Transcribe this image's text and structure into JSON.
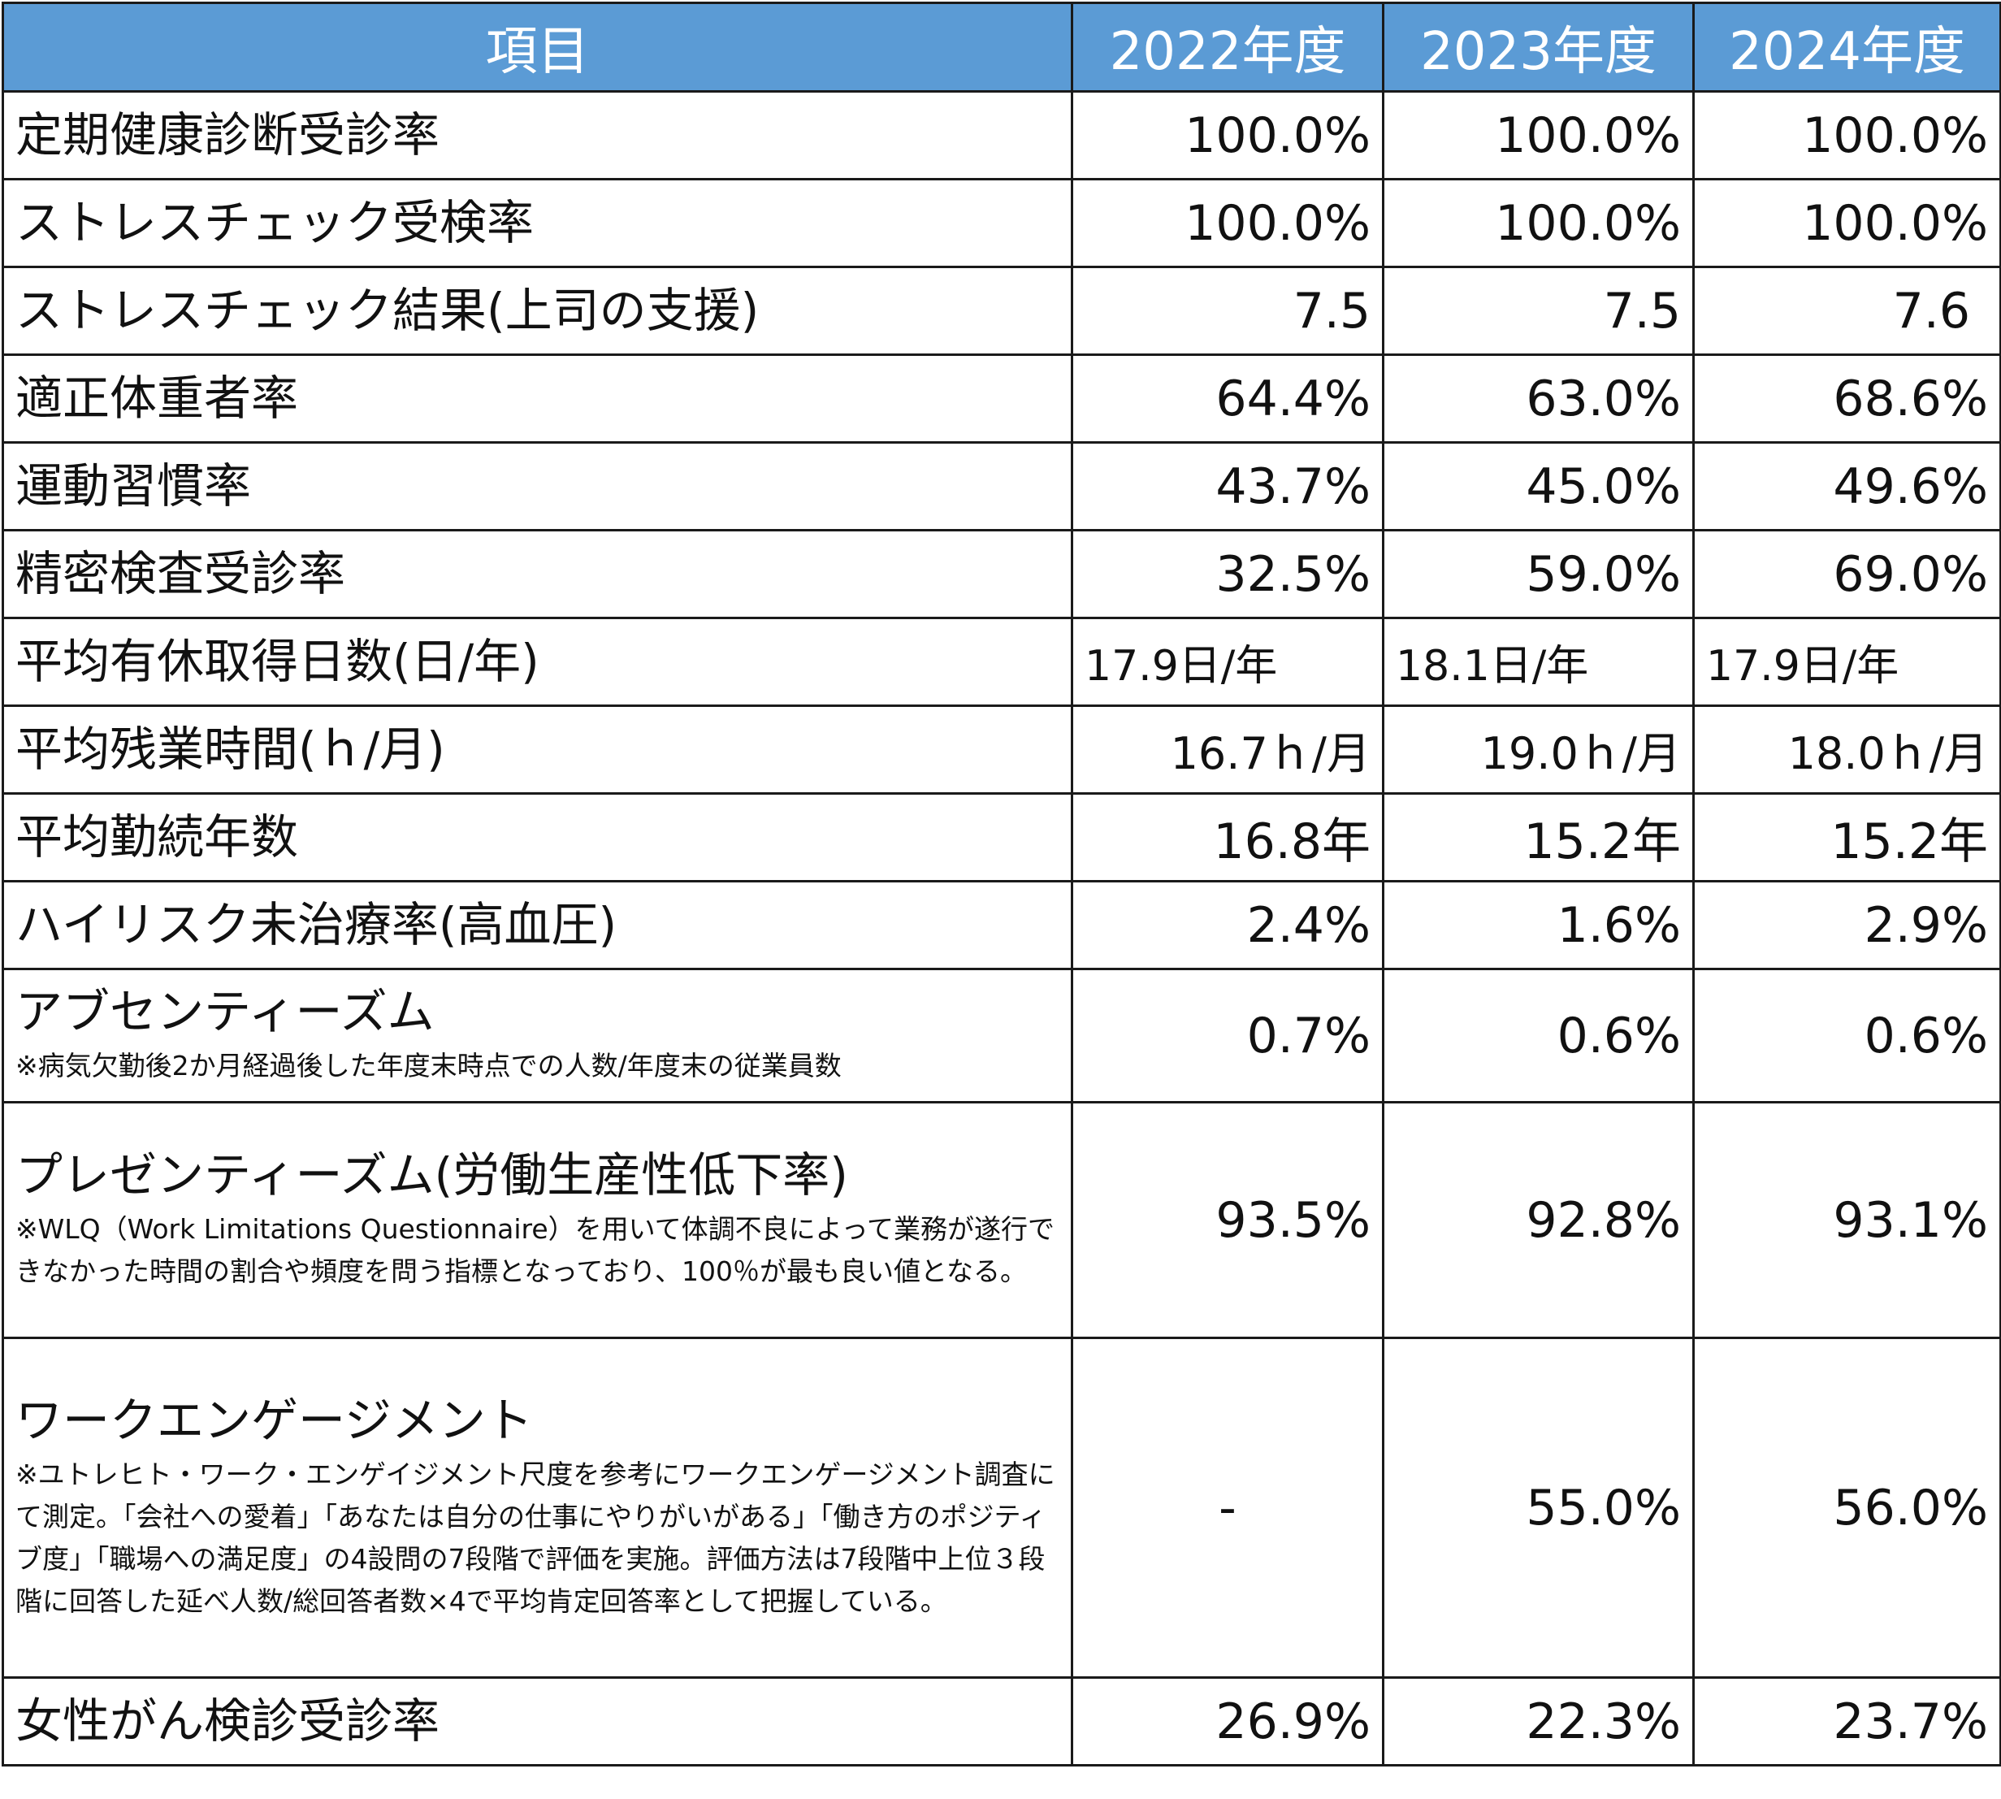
{
  "table": {
    "headers": [
      "項目",
      "2022年度",
      "2023年度",
      "2024年度"
    ],
    "rows": [
      {
        "label": "定期健康診断受診率",
        "note": "",
        "values": [
          "100.0%",
          "100.0%",
          "100.0%"
        ]
      },
      {
        "label": "ストレスチェック受検率",
        "note": "",
        "values": [
          "100.0%",
          "100.0%",
          "100.0%"
        ]
      },
      {
        "label": "ストレスチェック結果(上司の支援)",
        "note": "",
        "values": [
          "7.5",
          "7.5",
          "7.6"
        ]
      },
      {
        "label": "適正体重者率",
        "note": "",
        "values": [
          "64.4%",
          "63.0%",
          "68.6%"
        ]
      },
      {
        "label": "運動習慣率",
        "note": "",
        "values": [
          "43.7%",
          "45.0%",
          "49.6%"
        ]
      },
      {
        "label": "精密検査受診率",
        "note": "",
        "values": [
          "32.5%",
          "59.0%",
          "69.0%"
        ]
      },
      {
        "label": "平均有休取得日数(日/年)",
        "note": "",
        "values": [
          "17.9日/年",
          "18.1日/年",
          "17.9日/年"
        ]
      },
      {
        "label": "平均残業時間(ｈ/月)",
        "note": "",
        "values": [
          "16.7ｈ/月",
          "19.0ｈ/月",
          "18.0ｈ/月"
        ]
      },
      {
        "label": "平均勤続年数",
        "note": "",
        "values": [
          "16.8年",
          "15.2年",
          "15.2年"
        ]
      },
      {
        "label": "ハイリスク未治療率(高血圧)",
        "note": "",
        "values": [
          "2.4%",
          "1.6%",
          "2.9%"
        ]
      },
      {
        "label": "アブセンティーズム",
        "note": "※病気欠勤後2か月経過後した年度末時点での人数/年度末の従業員数",
        "values": [
          "0.7%",
          "0.6%",
          "0.6%"
        ]
      },
      {
        "label": "プレゼンティーズム(労働生産性低下率)",
        "note": "※WLQ（Work Limitations Questionnaire）を用いて体調不良によって業務が遂行できなかった時間の割合や頻度を問う指標となっており、100％が最も良い値となる。",
        "values": [
          "93.5%",
          "92.8%",
          "93.1%"
        ]
      },
      {
        "label": "ワークエンゲージメント",
        "note": "※ユトレヒト・ワーク・エンゲイジメント尺度を参考にワークエンゲージメント調査にて測定。「会社への愛着」「あなたは自分の仕事にやりがいがある」「働き方のポジティブ度」「職場への満足度」の4設問の7段階で評価を実施。評価方法は7段階中上位３段階に回答した延べ人数/総回答者数×4で平均肯定回答率として把握している。",
        "values": [
          "-",
          "55.0%",
          "56.0%"
        ]
      },
      {
        "label": "女性がん検診受診率",
        "note": "",
        "values": [
          "26.9%",
          "22.3%",
          "23.7%"
        ]
      }
    ]
  }
}
